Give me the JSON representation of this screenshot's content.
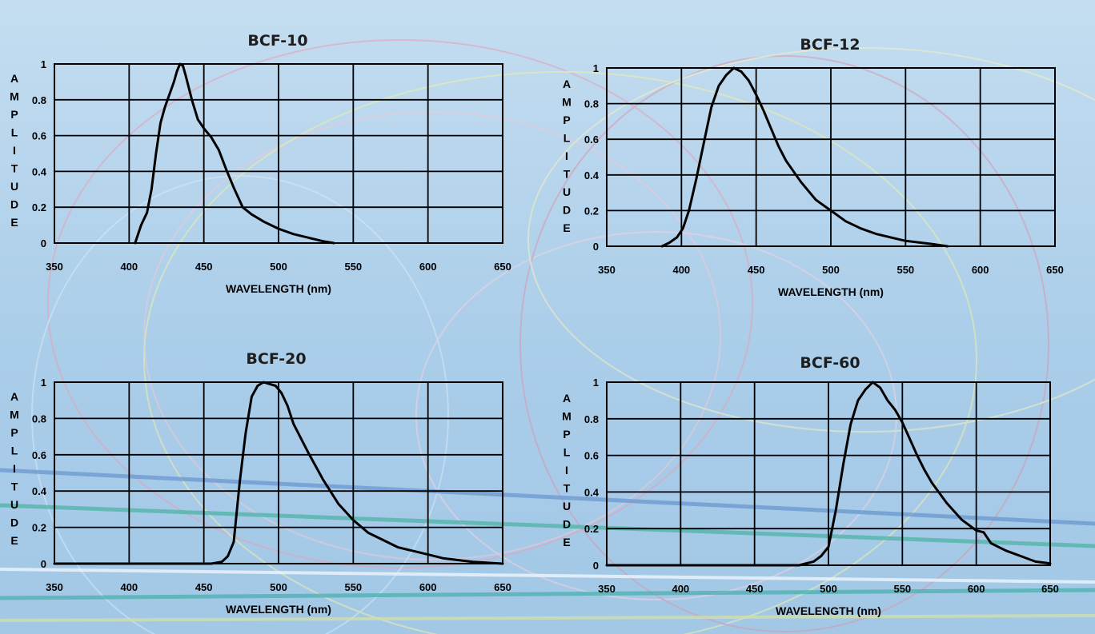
{
  "chart_data": [
    {
      "type": "line",
      "title": "BCF-10",
      "xlabel": "WAVELENGTH (nm)",
      "ylabel": "AMPLITUDE",
      "xlim": [
        350,
        650
      ],
      "ylim": [
        0,
        1
      ],
      "xticks": [
        "350",
        "400",
        "450",
        "500",
        "550",
        "600",
        "650"
      ],
      "yticks": [
        "0",
        "0.2",
        "0.4",
        "0.6",
        "0.8",
        "1"
      ],
      "grid": true,
      "series": [
        {
          "x": [
            404,
            408,
            412,
            415,
            418,
            421,
            424,
            427,
            430,
            432,
            434,
            436,
            438,
            442,
            446,
            450,
            455,
            460,
            465,
            470,
            476,
            482,
            490,
            500,
            510,
            520,
            530,
            537
          ],
          "y": [
            0,
            0.1,
            0.17,
            0.3,
            0.5,
            0.67,
            0.76,
            0.83,
            0.9,
            0.96,
            1.0,
            0.99,
            0.93,
            0.8,
            0.69,
            0.64,
            0.59,
            0.52,
            0.41,
            0.31,
            0.2,
            0.16,
            0.12,
            0.08,
            0.05,
            0.03,
            0.01,
            0
          ]
        }
      ]
    },
    {
      "type": "line",
      "title": "BCF-12",
      "xlabel": "WAVELENGTH (nm)",
      "ylabel": "AMPLITUDE",
      "xlim": [
        350,
        650
      ],
      "ylim": [
        0,
        1
      ],
      "xticks": [
        "350",
        "400",
        "450",
        "500",
        "550",
        "600",
        "650"
      ],
      "yticks": [
        "0",
        "0.2",
        "0.4",
        "0.6",
        "0.8",
        "1"
      ],
      "grid": true,
      "series": [
        {
          "x": [
            387,
            392,
            397,
            401,
            405,
            410,
            415,
            420,
            425,
            430,
            435,
            440,
            445,
            450,
            455,
            460,
            465,
            470,
            475,
            480,
            490,
            500,
            510,
            520,
            530,
            540,
            550,
            560,
            570,
            578
          ],
          "y": [
            0,
            0.02,
            0.05,
            0.1,
            0.2,
            0.38,
            0.58,
            0.78,
            0.9,
            0.96,
            1.0,
            0.98,
            0.93,
            0.85,
            0.76,
            0.66,
            0.56,
            0.48,
            0.42,
            0.36,
            0.26,
            0.2,
            0.14,
            0.1,
            0.07,
            0.05,
            0.03,
            0.02,
            0.01,
            0
          ]
        }
      ]
    },
    {
      "type": "line",
      "title": "BCF-20",
      "xlabel": "WAVELENGTH (nm)",
      "ylabel": "AMPLITUDE",
      "xlim": [
        350,
        650
      ],
      "ylim": [
        0,
        1
      ],
      "xticks": [
        "350",
        "400",
        "450",
        "500",
        "550",
        "600",
        "650"
      ],
      "yticks": [
        "0",
        "0.2",
        "0.4",
        "0.6",
        "0.8",
        "1"
      ],
      "grid": true,
      "series": [
        {
          "x": [
            350,
            455,
            462,
            466,
            470,
            474,
            478,
            482,
            486,
            490,
            494,
            498,
            502,
            506,
            510,
            520,
            530,
            540,
            550,
            560,
            570,
            580,
            590,
            600,
            610,
            620,
            630,
            640,
            650
          ],
          "y": [
            0,
            0,
            0.01,
            0.04,
            0.12,
            0.45,
            0.72,
            0.92,
            0.98,
            1.0,
            0.99,
            0.98,
            0.94,
            0.87,
            0.77,
            0.61,
            0.46,
            0.33,
            0.24,
            0.17,
            0.13,
            0.09,
            0.07,
            0.05,
            0.03,
            0.02,
            0.01,
            0.005,
            0
          ]
        }
      ]
    },
    {
      "type": "line",
      "title": "BCF-60",
      "xlabel": "WAVELENGTH (nm)",
      "ylabel": "AMPLITUDE",
      "xlim": [
        350,
        650
      ],
      "ylim": [
        0,
        1
      ],
      "xticks": [
        "350",
        "400",
        "450",
        "500",
        "550",
        "600",
        "650"
      ],
      "yticks": [
        "0",
        "0.2",
        "0.4",
        "0.6",
        "0.8",
        "1"
      ],
      "grid": true,
      "series": [
        {
          "x": [
            350,
            480,
            490,
            495,
            500,
            505,
            510,
            515,
            520,
            525,
            530,
            535,
            540,
            545,
            550,
            555,
            560,
            565,
            570,
            580,
            590,
            600,
            605,
            610,
            620,
            630,
            640,
            650
          ],
          "y": [
            0,
            0,
            0.02,
            0.05,
            0.1,
            0.3,
            0.55,
            0.77,
            0.9,
            0.96,
            1.0,
            0.97,
            0.9,
            0.85,
            0.78,
            0.69,
            0.6,
            0.52,
            0.45,
            0.34,
            0.25,
            0.19,
            0.18,
            0.12,
            0.08,
            0.05,
            0.02,
            0.01
          ]
        }
      ]
    }
  ]
}
